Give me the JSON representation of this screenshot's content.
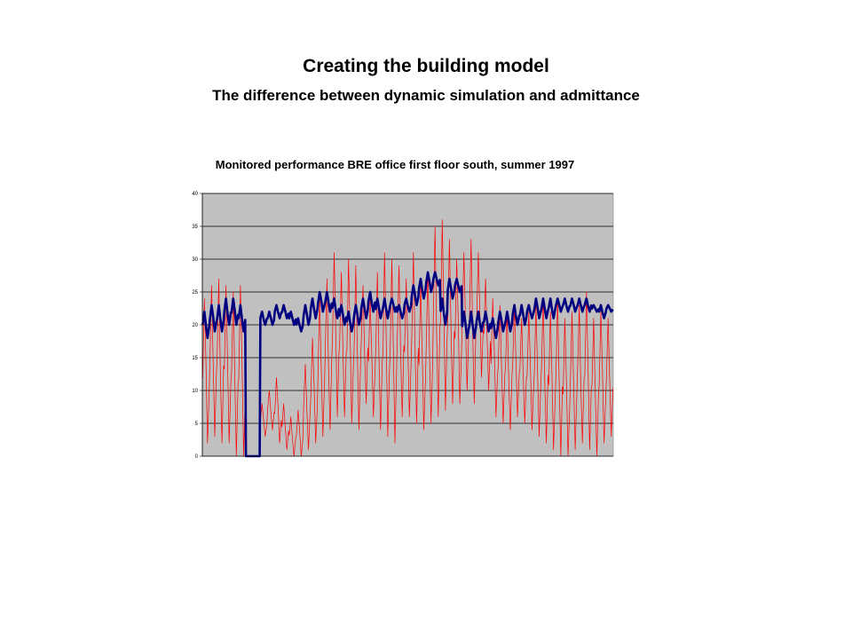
{
  "slide": {
    "title": "Creating the building model",
    "subtitle": "The difference between dynamic simulation and admittance"
  },
  "colors": {
    "plot_background": "#c0c0c0",
    "series_external": "#ff0000",
    "series_internal": "#000080"
  },
  "chart_data": {
    "type": "line",
    "title": "Monitored performance BRE office first floor south, summer 1997",
    "xlabel": "",
    "ylabel": "",
    "ylim": [
      0,
      40
    ],
    "yticks": [
      "0",
      "5",
      "10",
      "15",
      "20",
      "25",
      "30",
      "35",
      "40"
    ],
    "grid": true,
    "legend": "none",
    "series": [
      {
        "color": "#ff0000",
        "style": "thin daily-oscillating line",
        "daily_min": [
          2,
          3,
          2,
          2,
          0,
          0,
          0,
          0,
          3,
          4,
          2,
          1,
          0,
          0,
          1,
          2,
          3,
          4,
          6,
          6,
          5,
          4,
          8,
          6,
          4,
          3,
          2,
          6,
          6,
          5,
          4,
          5,
          6,
          7,
          8,
          8,
          10,
          8,
          12,
          10,
          6,
          5,
          4,
          6,
          5,
          4,
          3,
          2,
          1,
          0,
          0,
          1,
          2,
          1,
          0,
          2,
          3
        ],
        "daily_max": [
          24,
          26,
          27,
          26,
          25,
          26,
          0,
          0,
          8,
          10,
          12,
          8,
          6,
          7,
          14,
          18,
          24,
          27,
          31,
          28,
          30,
          29,
          26,
          24,
          28,
          31,
          30,
          29,
          27,
          31,
          26,
          28,
          35,
          36,
          33,
          30,
          31,
          33,
          31,
          27,
          24,
          23,
          22,
          23,
          21,
          22,
          23,
          24,
          22,
          24,
          21,
          22,
          23,
          25,
          21,
          22,
          21
        ]
      },
      {
        "color": "#000080",
        "style": "thick daily-oscillating line",
        "daily_min": [
          18,
          19,
          19,
          20,
          20,
          19,
          0,
          0,
          20,
          20,
          21,
          21,
          20,
          19,
          20,
          21,
          22,
          22,
          21,
          20,
          19,
          20,
          21,
          22,
          21,
          21,
          22,
          21,
          22,
          23,
          24,
          25,
          26,
          20,
          24,
          25,
          18,
          18,
          19,
          19,
          18,
          19,
          19,
          20,
          20,
          21,
          21,
          21,
          21,
          22,
          22,
          22,
          22,
          22,
          22,
          21,
          22
        ],
        "daily_max": [
          22,
          23,
          23,
          24,
          24,
          23,
          0,
          0,
          22,
          22,
          23,
          23,
          22,
          21,
          23,
          24,
          25,
          25,
          24,
          23,
          22,
          23,
          24,
          25,
          24,
          24,
          24,
          23,
          24,
          26,
          27,
          28,
          28,
          24,
          27,
          27,
          22,
          22,
          22,
          22,
          21,
          22,
          22,
          23,
          23,
          23,
          24,
          24,
          24,
          24,
          24,
          24,
          24,
          24,
          23,
          23,
          23
        ]
      }
    ]
  }
}
